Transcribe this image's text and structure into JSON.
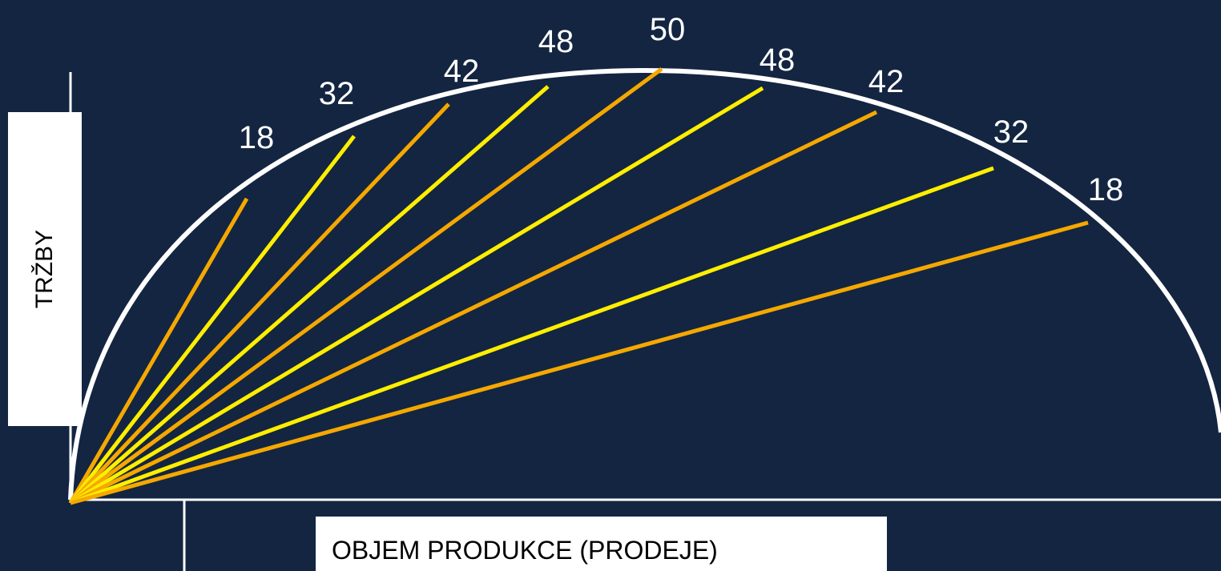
{
  "labels": {
    "y_axis": "TRŽBY",
    "x_axis": "OBJEM PRODUKCE (PRODEJE)"
  },
  "colors": {
    "background": "#132541",
    "curve": "#ffffff",
    "ray_orange": "#f5a800",
    "ray_yellow": "#ffee00",
    "label_box": "#ffffff"
  },
  "rays": [
    {
      "value": "18",
      "color": "orange"
    },
    {
      "value": "32",
      "color": "yellow"
    },
    {
      "value": "42",
      "color": "orange"
    },
    {
      "value": "48",
      "color": "yellow"
    },
    {
      "value": "50",
      "color": "orange"
    },
    {
      "value": "48",
      "color": "yellow"
    },
    {
      "value": "42",
      "color": "orange"
    },
    {
      "value": "32",
      "color": "yellow"
    },
    {
      "value": "18",
      "color": "orange"
    }
  ]
}
